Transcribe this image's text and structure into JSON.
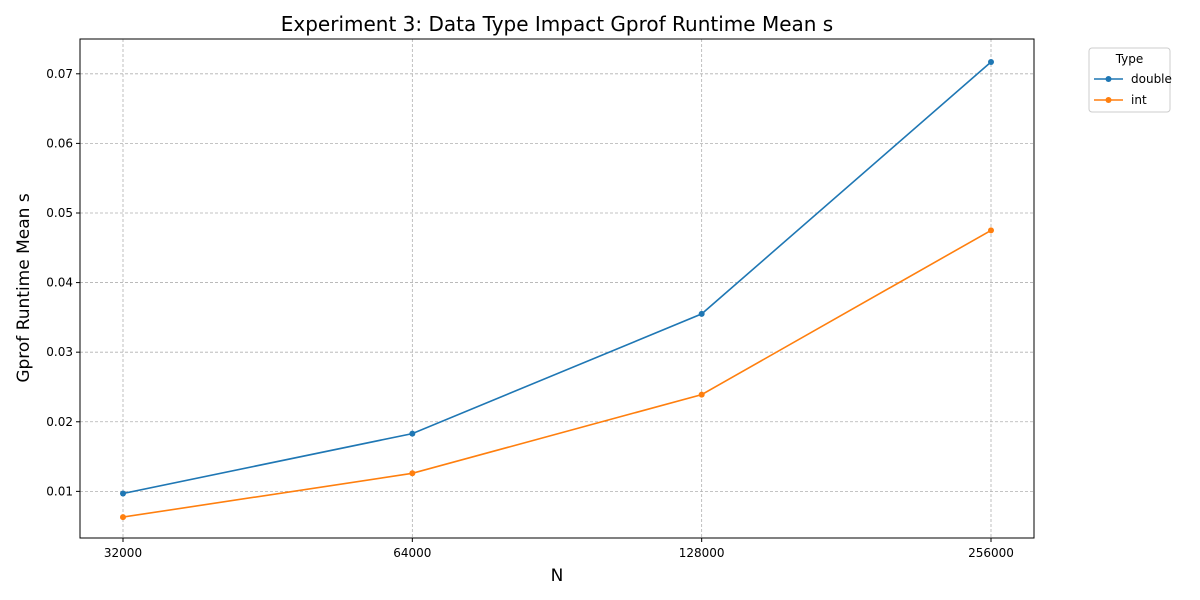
{
  "chart_data": {
    "type": "line",
    "title": "Experiment 3: Data Type Impact Gprof Runtime Mean s",
    "xlabel": "N",
    "ylabel": "Gprof Runtime Mean s",
    "x_scale": "log2",
    "x_ticks": [
      "32000",
      "64000",
      "128000",
      "256000"
    ],
    "x": [
      32000,
      64000,
      128000,
      256000
    ],
    "y_ticks": [
      "0.01",
      "0.02",
      "0.03",
      "0.04",
      "0.05",
      "0.06",
      "0.07"
    ],
    "ylim": [
      0.0033,
      0.075
    ],
    "grid": true,
    "legend": {
      "title": "Type",
      "placement": "outside-top-right"
    },
    "series": [
      {
        "name": "double",
        "color": "#1f77b4",
        "values": [
          0.0097,
          0.0183,
          0.0355,
          0.0717
        ]
      },
      {
        "name": "int",
        "color": "#ff7f0e",
        "values": [
          0.0063,
          0.0126,
          0.0239,
          0.0475
        ]
      }
    ]
  }
}
